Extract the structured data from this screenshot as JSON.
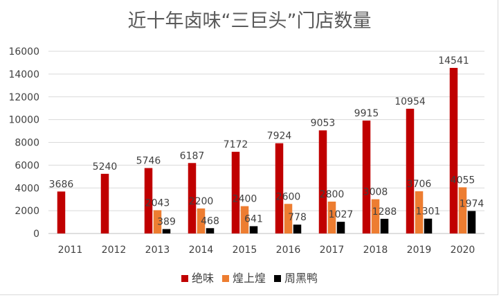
{
  "chart_data": {
    "type": "bar",
    "title": "近十年卤味“三巨头”门店数量",
    "categories": [
      "2011",
      "2012",
      "2013",
      "2014",
      "2015",
      "2016",
      "2017",
      "2018",
      "2019",
      "2020"
    ],
    "series": [
      {
        "name": "绝味",
        "color": "#c00000",
        "values": [
          3686,
          5240,
          5746,
          6187,
          7172,
          7924,
          9053,
          9915,
          10954,
          14541
        ]
      },
      {
        "name": "煌上煌",
        "color": "#ed7d31",
        "values": [
          null,
          null,
          2043,
          2200,
          2400,
          2600,
          2800,
          3008,
          3706,
          4055
        ]
      },
      {
        "name": "周黑鸭",
        "color": "#000000",
        "values": [
          null,
          null,
          389,
          468,
          641,
          778,
          1027,
          1288,
          1301,
          1974
        ]
      }
    ],
    "y_ticks": [
      "0",
      "2000",
      "4000",
      "6000",
      "8000",
      "10000",
      "12000",
      "14000",
      "16000"
    ],
    "ylim": [
      0,
      16000
    ],
    "grid": true,
    "legend": "bottom"
  }
}
